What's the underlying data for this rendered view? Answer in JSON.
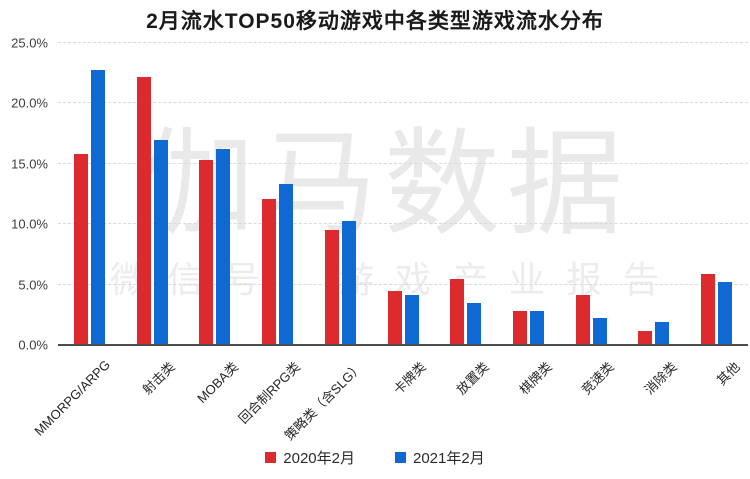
{
  "title": "2月流水TOP50移动游戏中各类型游戏流水分布",
  "watermark": {
    "line1": "伽马数据",
    "line2": "微信号：游戏产业报告"
  },
  "colors": {
    "series_2020_red": "#dc2a2f",
    "series_2021_blue": "#0f69d2",
    "gridline": "#d9d9d9",
    "axis_line": "#4d4d4d",
    "title_text": "#1a1a1a",
    "tick_text": "#3d3d3d",
    "watermark_text": "#e9e9e9",
    "background": "#ffffff"
  },
  "y_axis": {
    "tick_labels": [
      "0.0%",
      "5.0%",
      "10.0%",
      "15.0%",
      "20.0%",
      "25.0%"
    ]
  },
  "legend": {
    "items": [
      {
        "label": "2020年2月",
        "color": "#dc2a2f"
      },
      {
        "label": "2021年2月",
        "color": "#0f69d2"
      }
    ]
  },
  "chart_data": {
    "type": "bar",
    "title": "2月流水TOP50移动游戏中各类型游戏流水分布",
    "categories": [
      "MMORPG/ARPG",
      "射击类",
      "MOBA类",
      "回合制RPG类",
      "策略类（含SLG）",
      "卡牌类",
      "放置类",
      "棋牌类",
      "竞速类",
      "消除类",
      "其他"
    ],
    "series": [
      {
        "name": "2020年2月",
        "color": "#dc2a2f",
        "values": [
          15.8,
          22.2,
          15.3,
          12.1,
          9.5,
          4.5,
          5.5,
          2.8,
          4.1,
          1.2,
          5.9
        ]
      },
      {
        "name": "2021年2月",
        "color": "#0f69d2",
        "values": [
          22.8,
          17.0,
          16.2,
          13.3,
          10.3,
          4.1,
          3.5,
          2.8,
          2.2,
          1.9,
          5.2
        ]
      }
    ],
    "xlabel": "",
    "ylabel": "",
    "ylim": [
      0,
      25
    ],
    "yticks_percent": [
      0,
      5,
      10,
      15,
      20,
      25
    ],
    "unit": "percent",
    "grid": "horizontal-dashed",
    "x_tick_rotation_deg": 45,
    "legend_position": "bottom-center"
  }
}
